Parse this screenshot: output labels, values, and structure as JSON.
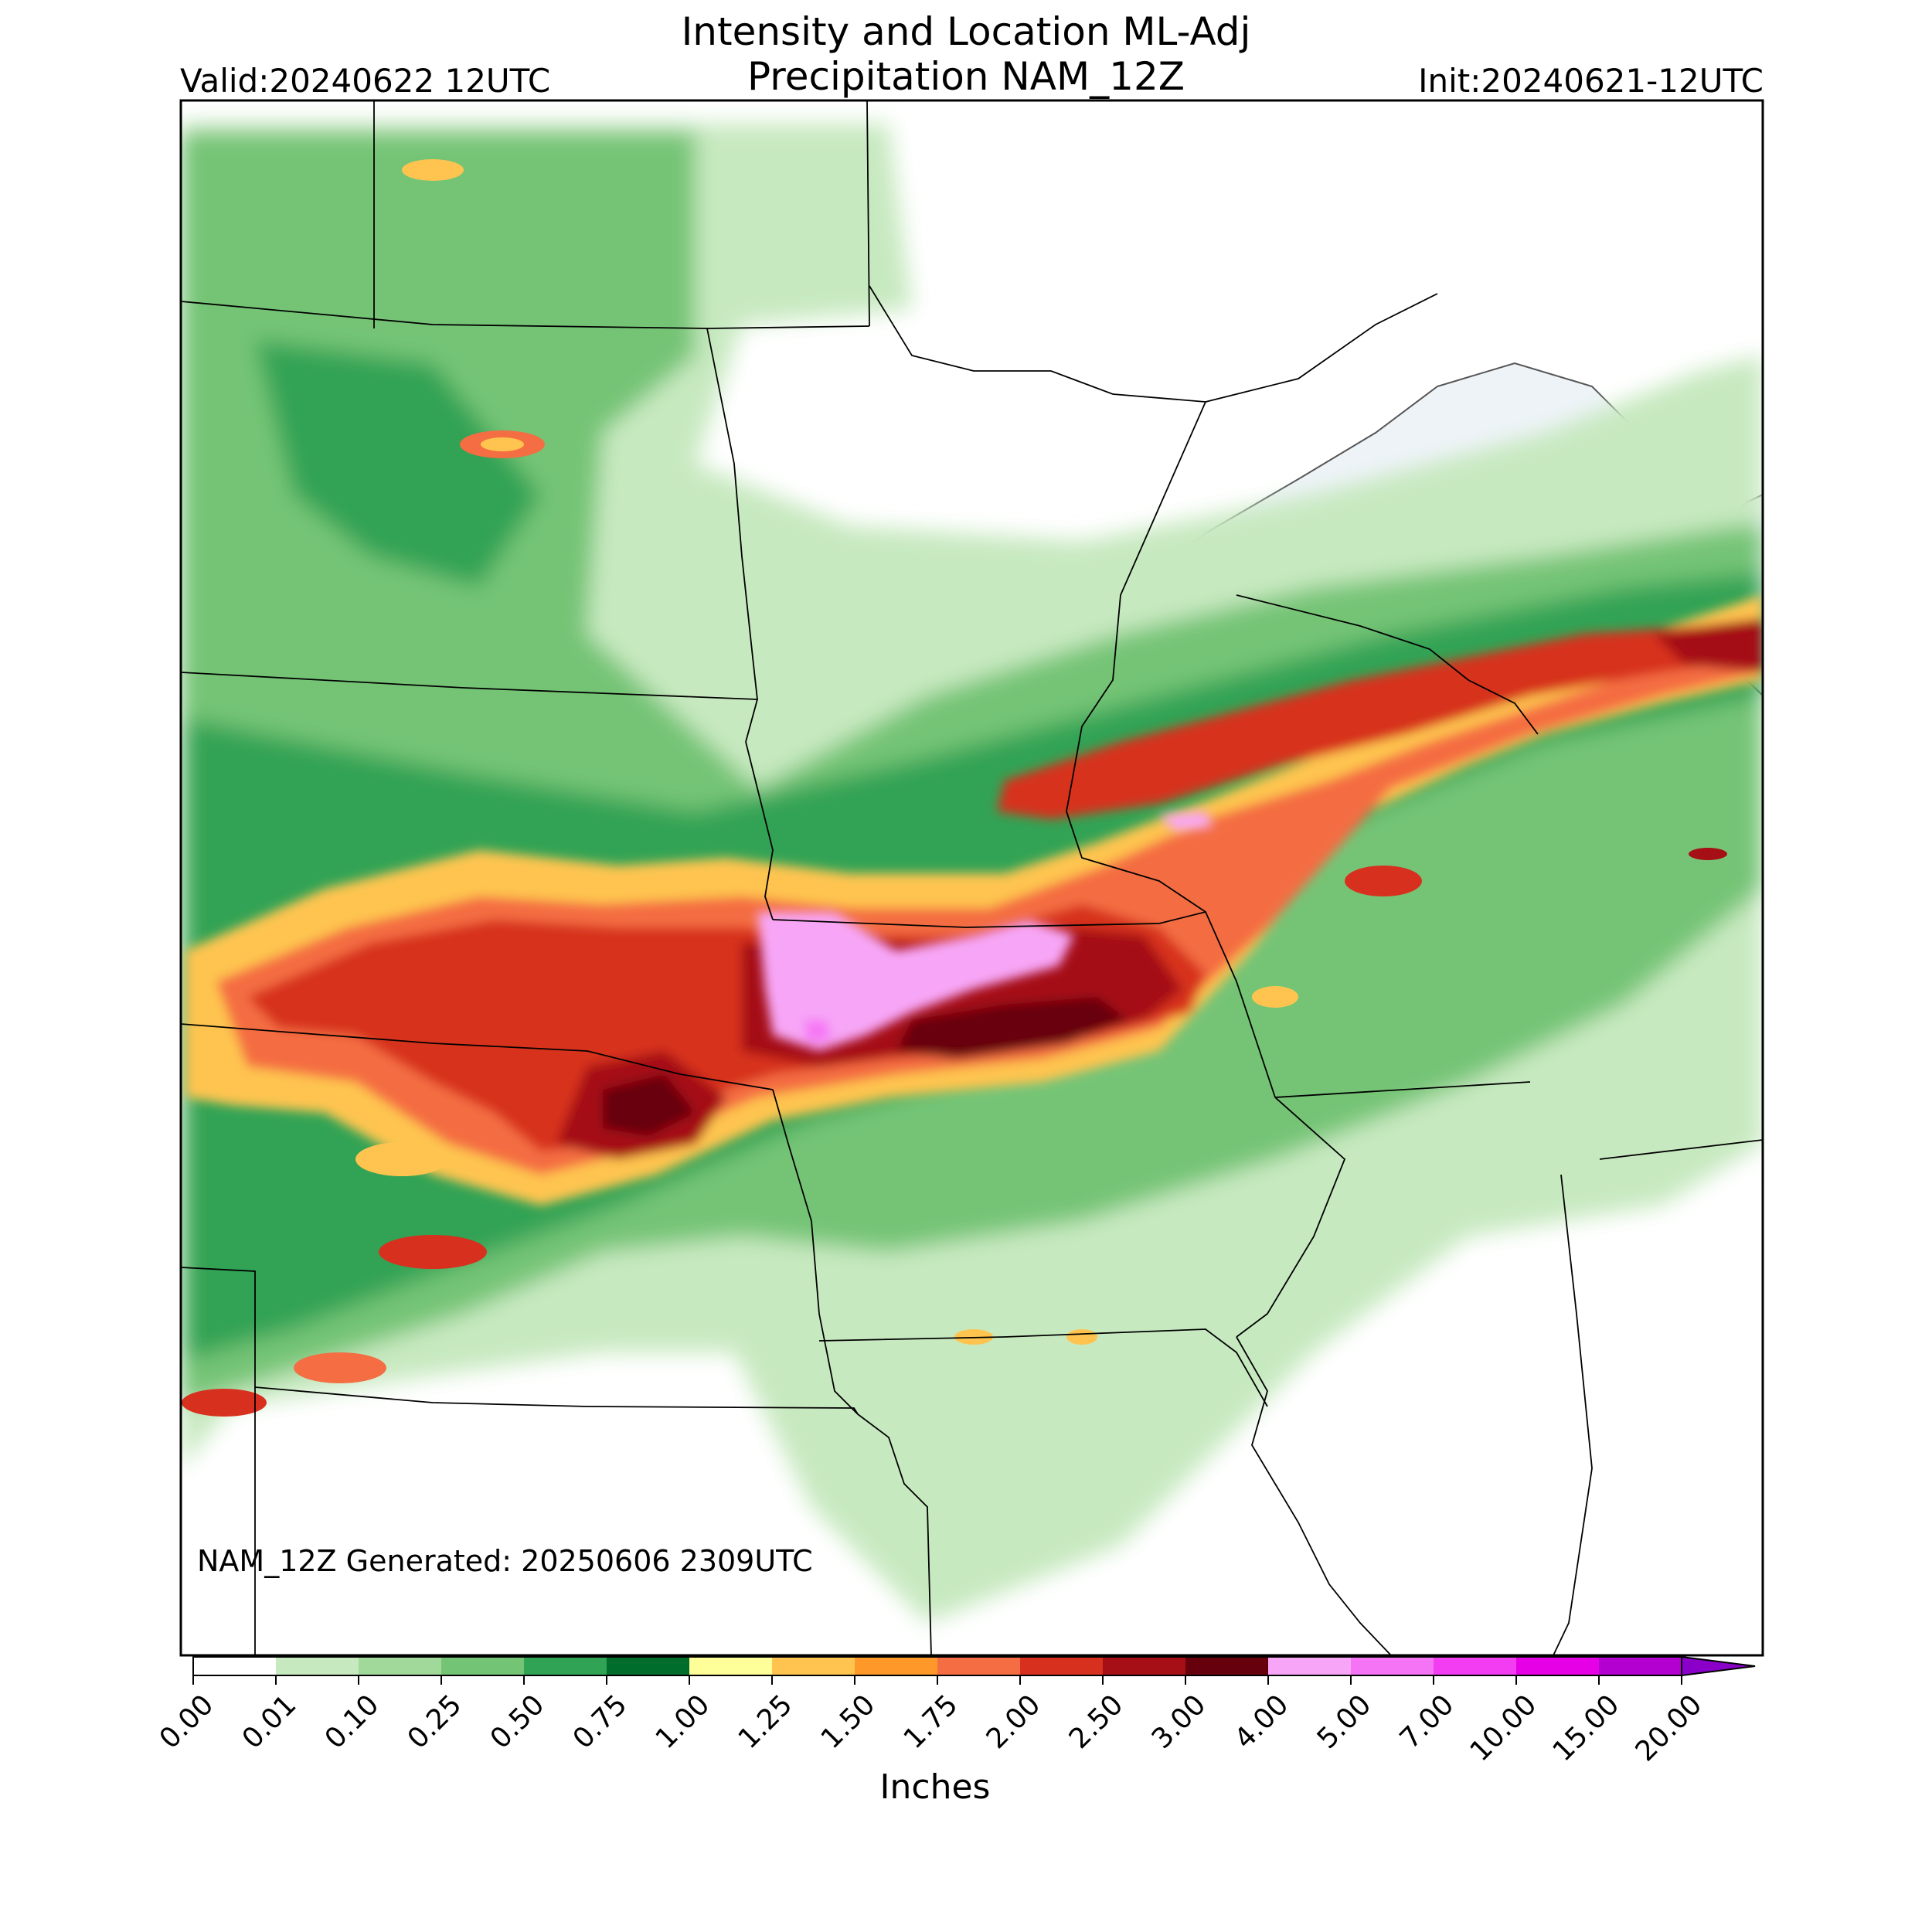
{
  "header": {
    "title_line1": "Intensity and Location ML-Adj",
    "title_line2": "Precipitation NAM_12Z",
    "valid": "Valid:20240622 12UTC",
    "init": "Init:20240621-12UTC"
  },
  "map": {
    "footer": "NAM_12Z Generated: 20250606 2309UTC",
    "land_color": "#ffffff",
    "water_color": "#eef3f8",
    "border_color": "#000000"
  },
  "colorbar": {
    "label": "Inches",
    "ticks": [
      "0.00",
      "0.01",
      "0.10",
      "0.25",
      "0.50",
      "0.75",
      "1.00",
      "1.25",
      "1.50",
      "1.75",
      "2.00",
      "2.50",
      "3.00",
      "4.00",
      "5.00",
      "7.00",
      "10.00",
      "15.00",
      "20.00"
    ],
    "colors": [
      "#ffffff",
      "#c7e9c0",
      "#a1d99b",
      "#74c476",
      "#31a354",
      "#006d2c",
      "#ffff99",
      "#fec44f",
      "#fe9929",
      "#f46d43",
      "#d7301f",
      "#a50f15",
      "#67000d",
      "#f7a6f7",
      "#f574f5",
      "#f23df2",
      "#e600e6",
      "#b300d1",
      "#8b00c9"
    ],
    "extend_color": "#8b00c9"
  }
}
